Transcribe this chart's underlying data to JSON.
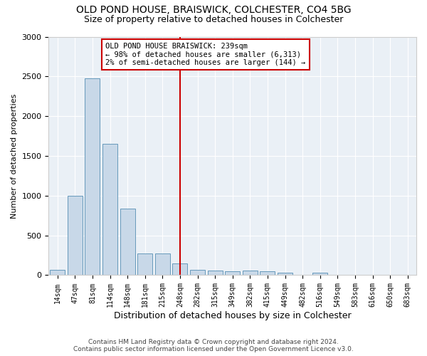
{
  "title_line1": "OLD POND HOUSE, BRAISWICK, COLCHESTER, CO4 5BG",
  "title_line2": "Size of property relative to detached houses in Colchester",
  "xlabel": "Distribution of detached houses by size in Colchester",
  "ylabel": "Number of detached properties",
  "categories": [
    "14sqm",
    "47sqm",
    "81sqm",
    "114sqm",
    "148sqm",
    "181sqm",
    "215sqm",
    "248sqm",
    "282sqm",
    "315sqm",
    "349sqm",
    "382sqm",
    "415sqm",
    "449sqm",
    "482sqm",
    "516sqm",
    "549sqm",
    "583sqm",
    "616sqm",
    "650sqm",
    "683sqm"
  ],
  "values": [
    70,
    1000,
    2480,
    1650,
    840,
    270,
    270,
    145,
    70,
    55,
    45,
    55,
    45,
    35,
    5,
    35,
    5,
    5,
    5,
    5,
    5
  ],
  "bar_color": "#c8d8e8",
  "bar_edge_color": "#6699bb",
  "property_line_index": 7,
  "annotation_line1": "OLD POND HOUSE BRAISWICK: 239sqm",
  "annotation_line2": "← 98% of detached houses are smaller (6,313)",
  "annotation_line3": "2% of semi-detached houses are larger (144) →",
  "red_line_color": "#cc0000",
  "annotation_box_edge_color": "#cc0000",
  "footer_line1": "Contains HM Land Registry data © Crown copyright and database right 2024.",
  "footer_line2": "Contains public sector information licensed under the Open Government Licence v3.0.",
  "bg_color": "#eaf0f6",
  "ylim": [
    0,
    3000
  ],
  "yticks": [
    0,
    500,
    1000,
    1500,
    2000,
    2500,
    3000
  ]
}
